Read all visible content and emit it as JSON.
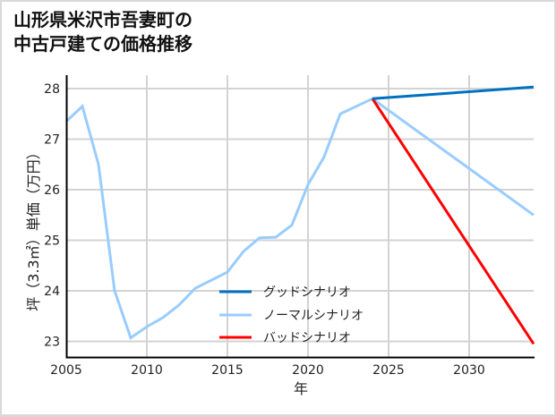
{
  "title_lines": [
    "山形県米沢市吾妻町の",
    "中古戸建ての価格推移"
  ],
  "chart_data": {
    "type": "line",
    "title": "山形県米沢市吾妻町の中古戸建ての価格推移",
    "xlabel": "年",
    "ylabel": "坪（3.3㎡）単価（万円）",
    "xlim": [
      2005,
      2034
    ],
    "ylim": [
      22.7,
      28.26
    ],
    "xticks": [
      2005,
      2010,
      2015,
      2020,
      2025,
      2030
    ],
    "yticks": [
      23,
      24,
      25,
      26,
      27,
      28
    ],
    "grid": true,
    "legend_position": "lower center (inside plot)",
    "series": [
      {
        "name": "グッドシナリオ",
        "color": "#0070C0",
        "x": [
          2024,
          2034
        ],
        "values": [
          27.8,
          28.03
        ]
      },
      {
        "name": "ノーマルシナリオ",
        "color": "#99CCFF",
        "x": [
          2005,
          2006,
          2007,
          2008,
          2009,
          2010,
          2011,
          2012,
          2013,
          2014,
          2015,
          2016,
          2017,
          2018,
          2019,
          2020,
          2021,
          2022,
          2023,
          2024,
          2034
        ],
        "values": [
          27.35,
          27.65,
          26.5,
          24.0,
          23.07,
          23.29,
          23.47,
          23.72,
          24.05,
          24.21,
          24.37,
          24.78,
          25.05,
          25.06,
          25.3,
          26.1,
          26.65,
          27.5,
          27.65,
          27.8,
          25.5
        ]
      },
      {
        "name": "バッドシナリオ",
        "color": "#FF0000",
        "x": [
          2024,
          2034
        ],
        "values": [
          27.8,
          22.95
        ]
      }
    ]
  }
}
